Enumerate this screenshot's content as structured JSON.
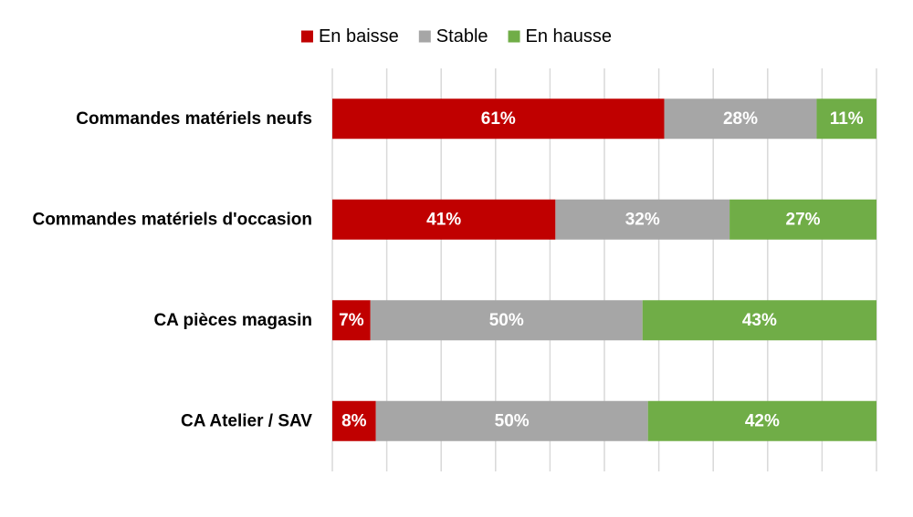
{
  "chart_data": {
    "type": "bar",
    "orientation": "horizontal",
    "stacked": true,
    "title": "",
    "xlabel": "",
    "ylabel": "",
    "xlim": [
      0,
      100
    ],
    "grid": true,
    "legend_position": "top-center",
    "categories": [
      "Commandes matériels neufs",
      "Commandes matériels d'occasion",
      "CA pièces magasin",
      "CA Atelier / SAV"
    ],
    "series": [
      {
        "name": "En baisse",
        "color": "#c00000",
        "values": [
          61,
          41,
          7,
          8
        ],
        "labels": [
          "61%",
          "41%",
          "7%",
          "8%"
        ]
      },
      {
        "name": "Stable",
        "color": "#a6a6a6",
        "values": [
          28,
          32,
          50,
          50
        ],
        "labels": [
          "28%",
          "32%",
          "50%",
          "50%"
        ]
      },
      {
        "name": "En hausse",
        "color": "#70ad47",
        "values": [
          11,
          27,
          43,
          42
        ],
        "labels": [
          "11%",
          "27%",
          "43%",
          "42%"
        ]
      }
    ]
  }
}
